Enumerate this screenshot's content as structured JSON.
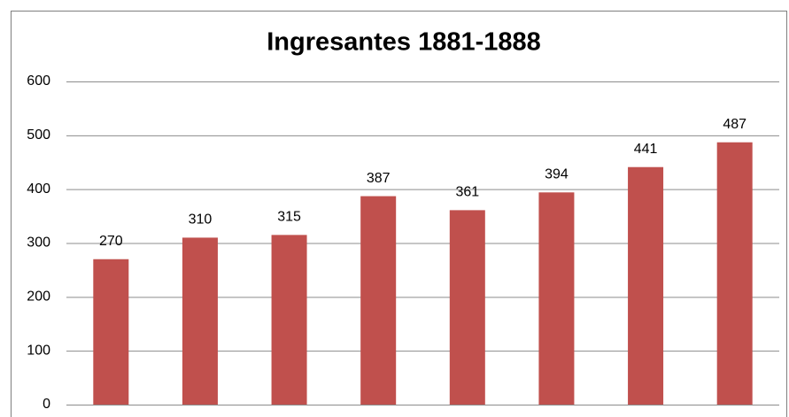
{
  "chart_data": {
    "type": "bar",
    "title": "Ingresantes 1881-1888",
    "categories": [
      null,
      null,
      null,
      null,
      null,
      null,
      null,
      null
    ],
    "values": [
      270,
      310,
      315,
      387,
      361,
      394,
      441,
      487
    ],
    "color": "#c0504d",
    "ylim": [
      0,
      600
    ],
    "yticks": [
      0,
      100,
      200,
      300,
      400,
      500,
      600
    ],
    "grid": true
  }
}
